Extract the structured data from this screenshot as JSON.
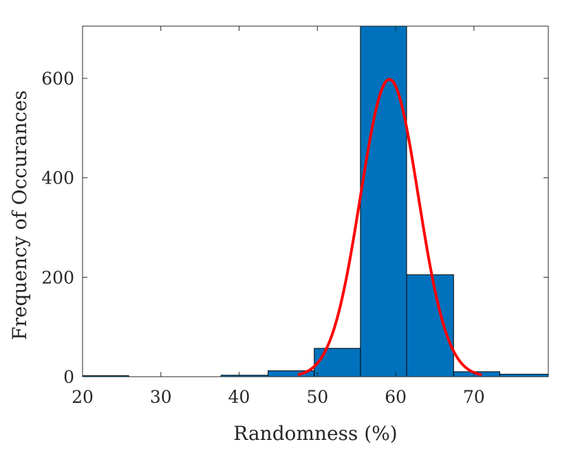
{
  "chart_data": {
    "type": "bar",
    "title": "",
    "xlabel": "Randomness (%)",
    "ylabel": "Frequency of Occurances",
    "xlim": [
      20,
      79.5
    ],
    "ylim": [
      0,
      705
    ],
    "xticks": [
      "20",
      "30",
      "40",
      "50",
      "60",
      "70"
    ],
    "yticks": [
      "0",
      "200",
      "400",
      "600"
    ],
    "grid": false,
    "bins": [
      {
        "x0": 20.0,
        "x1": 25.9,
        "count": 2
      },
      {
        "x0": 25.9,
        "x1": 31.8,
        "count": 0
      },
      {
        "x0": 31.8,
        "x1": 37.7,
        "count": 0
      },
      {
        "x0": 37.7,
        "x1": 43.7,
        "count": 3
      },
      {
        "x0": 43.7,
        "x1": 49.6,
        "count": 12
      },
      {
        "x0": 49.6,
        "x1": 55.5,
        "count": 57
      },
      {
        "x0": 55.5,
        "x1": 61.4,
        "count": 705
      },
      {
        "x0": 61.4,
        "x1": 67.4,
        "count": 205
      },
      {
        "x0": 67.4,
        "x1": 73.3,
        "count": 10
      },
      {
        "x0": 73.3,
        "x1": 79.5,
        "count": 5
      }
    ],
    "fit": {
      "type": "normal",
      "mean": 59.2,
      "sigma": 3.7,
      "peak": 598,
      "x_range": [
        47.5,
        71.0
      ]
    },
    "colors": {
      "bars": "#0072BD",
      "bar_edge": "#000000",
      "fit_line": "#FF0000"
    }
  }
}
